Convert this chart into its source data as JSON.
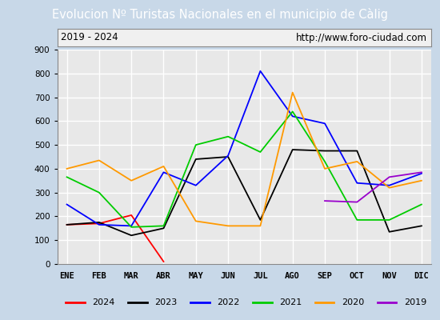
{
  "title": "Evolucion Nº Turistas Nacionales en el municipio de Càlig",
  "subtitle_left": "2019 - 2024",
  "subtitle_right": "http://www.foro-ciudad.com",
  "months": [
    "ENE",
    "FEB",
    "MAR",
    "ABR",
    "MAY",
    "JUN",
    "JUL",
    "AGO",
    "SEP",
    "OCT",
    "NOV",
    "DIC"
  ],
  "ylim": [
    0,
    900
  ],
  "yticks": [
    0,
    100,
    200,
    300,
    400,
    500,
    600,
    700,
    800,
    900
  ],
  "series": {
    "2024": {
      "color": "#ff0000",
      "data": [
        165,
        170,
        205,
        10,
        null,
        null,
        null,
        null,
        null,
        null,
        null,
        null
      ]
    },
    "2023": {
      "color": "#000000",
      "data": [
        165,
        175,
        120,
        150,
        440,
        450,
        185,
        480,
        475,
        475,
        135,
        160
      ]
    },
    "2022": {
      "color": "#0000ff",
      "data": [
        250,
        165,
        160,
        385,
        330,
        455,
        810,
        620,
        590,
        340,
        330,
        380
      ]
    },
    "2021": {
      "color": "#00cc00",
      "data": [
        365,
        300,
        155,
        160,
        500,
        535,
        470,
        640,
        430,
        185,
        185,
        250
      ]
    },
    "2020": {
      "color": "#ff9900",
      "data": [
        400,
        435,
        350,
        410,
        180,
        160,
        160,
        720,
        400,
        430,
        320,
        350
      ]
    },
    "2019": {
      "color": "#9900cc",
      "data": [
        null,
        null,
        null,
        null,
        null,
        null,
        null,
        null,
        265,
        260,
        365,
        385
      ]
    }
  },
  "title_bg_color": "#4d8fcc",
  "title_font_color": "#ffffff",
  "plot_bg_color": "#e8e8e8",
  "outer_bg_color": "#c8d8e8",
  "grid_color": "#ffffff",
  "subtitle_box_color": "#f0f0f0"
}
